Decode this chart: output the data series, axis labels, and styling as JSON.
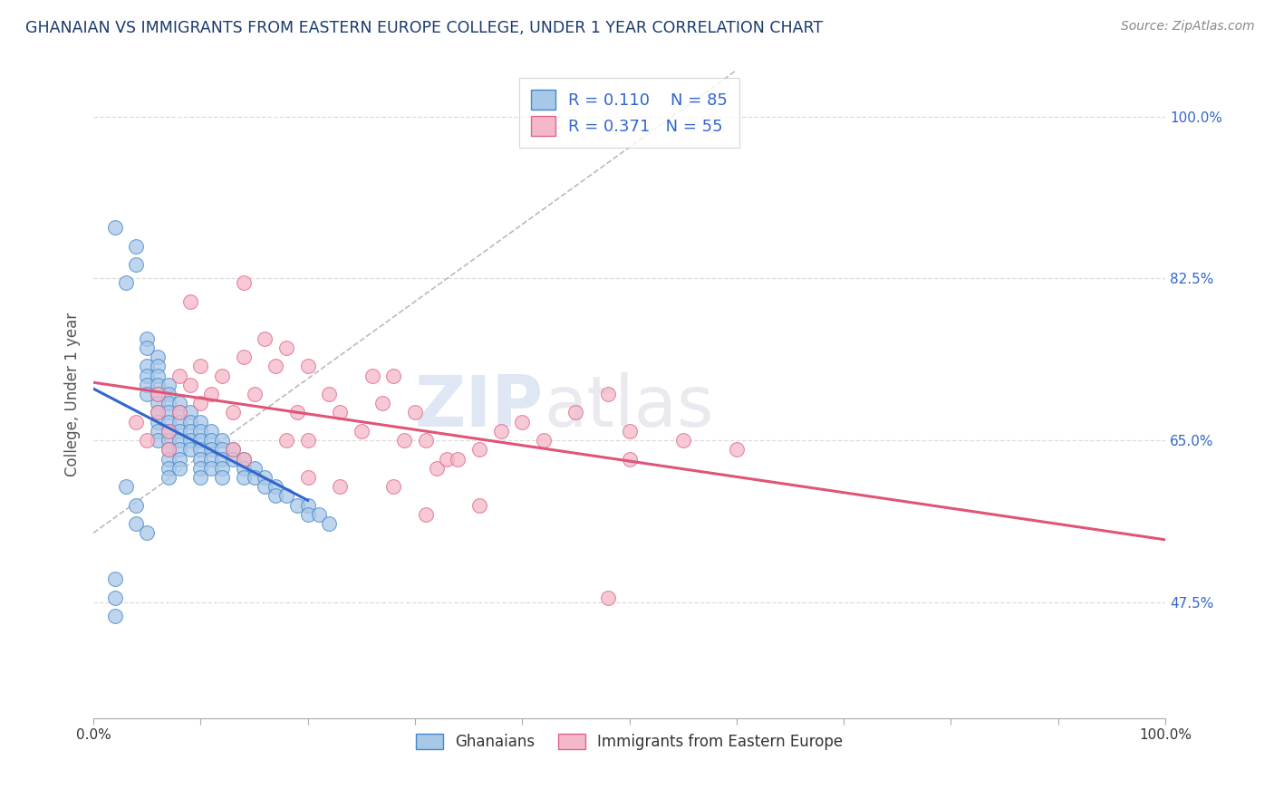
{
  "title": "GHANAIAN VS IMMIGRANTS FROM EASTERN EUROPE COLLEGE, UNDER 1 YEAR CORRELATION CHART",
  "source": "Source: ZipAtlas.com",
  "ylabel": "College, Under 1 year",
  "xlim": [
    0.0,
    1.0
  ],
  "ylim": [
    0.35,
    1.05
  ],
  "xtick_positions": [
    0.0,
    0.1,
    0.2,
    0.3,
    0.4,
    0.5,
    0.6,
    0.7,
    0.8,
    0.9,
    1.0
  ],
  "xtick_labels_show": [
    "0.0%",
    "",
    "",
    "",
    "",
    "",
    "",
    "",
    "",
    "",
    "100.0%"
  ],
  "ytick_right_labels": [
    "47.5%",
    "65.0%",
    "82.5%",
    "100.0%"
  ],
  "ytick_right_values": [
    0.475,
    0.65,
    0.825,
    1.0
  ],
  "ghanaian_color": "#a8c8e8",
  "eastern_europe_color": "#f5b8c8",
  "ghanaian_edge_color": "#4488cc",
  "eastern_europe_edge_color": "#e06688",
  "ghanaian_line_color": "#3366cc",
  "eastern_europe_line_color": "#e05577",
  "ref_line_color": "#aaaaaa",
  "ghanaian_R": 0.11,
  "ghanaian_N": 85,
  "eastern_europe_R": 0.371,
  "eastern_europe_N": 55,
  "legend_label_1": "Ghanaians",
  "legend_label_2": "Immigrants from Eastern Europe",
  "watermark_zip": "ZIP",
  "watermark_atlas": "atlas",
  "background_color": "#ffffff",
  "grid_color": "#dddddd",
  "title_color": "#1a3a6e",
  "axis_label_color": "#555555",
  "source_color": "#888888",
  "right_tick_color": "#3366cc",
  "ghanaian_x": [
    0.02,
    0.03,
    0.04,
    0.04,
    0.05,
    0.05,
    0.05,
    0.05,
    0.05,
    0.05,
    0.06,
    0.06,
    0.06,
    0.06,
    0.06,
    0.06,
    0.06,
    0.06,
    0.06,
    0.06,
    0.07,
    0.07,
    0.07,
    0.07,
    0.07,
    0.07,
    0.07,
    0.07,
    0.07,
    0.07,
    0.07,
    0.08,
    0.08,
    0.08,
    0.08,
    0.08,
    0.08,
    0.08,
    0.08,
    0.09,
    0.09,
    0.09,
    0.09,
    0.09,
    0.1,
    0.1,
    0.1,
    0.1,
    0.1,
    0.1,
    0.1,
    0.11,
    0.11,
    0.11,
    0.11,
    0.11,
    0.12,
    0.12,
    0.12,
    0.12,
    0.12,
    0.13,
    0.13,
    0.14,
    0.14,
    0.14,
    0.15,
    0.15,
    0.16,
    0.16,
    0.17,
    0.17,
    0.18,
    0.19,
    0.2,
    0.2,
    0.21,
    0.22,
    0.03,
    0.04,
    0.04,
    0.05,
    0.02,
    0.02,
    0.02
  ],
  "ghanaian_y": [
    0.88,
    0.82,
    0.86,
    0.84,
    0.76,
    0.75,
    0.73,
    0.72,
    0.71,
    0.7,
    0.74,
    0.73,
    0.72,
    0.71,
    0.7,
    0.69,
    0.68,
    0.67,
    0.66,
    0.65,
    0.71,
    0.7,
    0.69,
    0.68,
    0.67,
    0.66,
    0.65,
    0.64,
    0.63,
    0.62,
    0.61,
    0.69,
    0.68,
    0.67,
    0.66,
    0.65,
    0.64,
    0.63,
    0.62,
    0.68,
    0.67,
    0.66,
    0.65,
    0.64,
    0.67,
    0.66,
    0.65,
    0.64,
    0.63,
    0.62,
    0.61,
    0.66,
    0.65,
    0.64,
    0.63,
    0.62,
    0.65,
    0.64,
    0.63,
    0.62,
    0.61,
    0.64,
    0.63,
    0.63,
    0.62,
    0.61,
    0.62,
    0.61,
    0.61,
    0.6,
    0.6,
    0.59,
    0.59,
    0.58,
    0.58,
    0.57,
    0.57,
    0.56,
    0.6,
    0.58,
    0.56,
    0.55,
    0.5,
    0.48,
    0.46
  ],
  "eastern_europe_x": [
    0.04,
    0.05,
    0.06,
    0.06,
    0.07,
    0.07,
    0.08,
    0.08,
    0.09,
    0.1,
    0.1,
    0.11,
    0.12,
    0.13,
    0.13,
    0.14,
    0.15,
    0.16,
    0.17,
    0.18,
    0.18,
    0.19,
    0.2,
    0.2,
    0.22,
    0.23,
    0.25,
    0.26,
    0.27,
    0.28,
    0.29,
    0.3,
    0.31,
    0.32,
    0.33,
    0.34,
    0.36,
    0.38,
    0.4,
    0.42,
    0.45,
    0.48,
    0.5,
    0.55,
    0.6,
    0.14,
    0.2,
    0.23,
    0.31,
    0.36,
    0.5,
    0.09,
    0.14,
    0.28,
    0.48
  ],
  "eastern_europe_y": [
    0.67,
    0.65,
    0.7,
    0.68,
    0.66,
    0.64,
    0.72,
    0.68,
    0.71,
    0.73,
    0.69,
    0.7,
    0.72,
    0.68,
    0.64,
    0.74,
    0.7,
    0.76,
    0.73,
    0.75,
    0.65,
    0.68,
    0.73,
    0.65,
    0.7,
    0.68,
    0.66,
    0.72,
    0.69,
    0.72,
    0.65,
    0.68,
    0.65,
    0.62,
    0.63,
    0.63,
    0.64,
    0.66,
    0.67,
    0.65,
    0.68,
    0.7,
    0.66,
    0.65,
    0.64,
    0.63,
    0.61,
    0.6,
    0.57,
    0.58,
    0.63,
    0.8,
    0.82,
    0.6,
    0.48
  ]
}
